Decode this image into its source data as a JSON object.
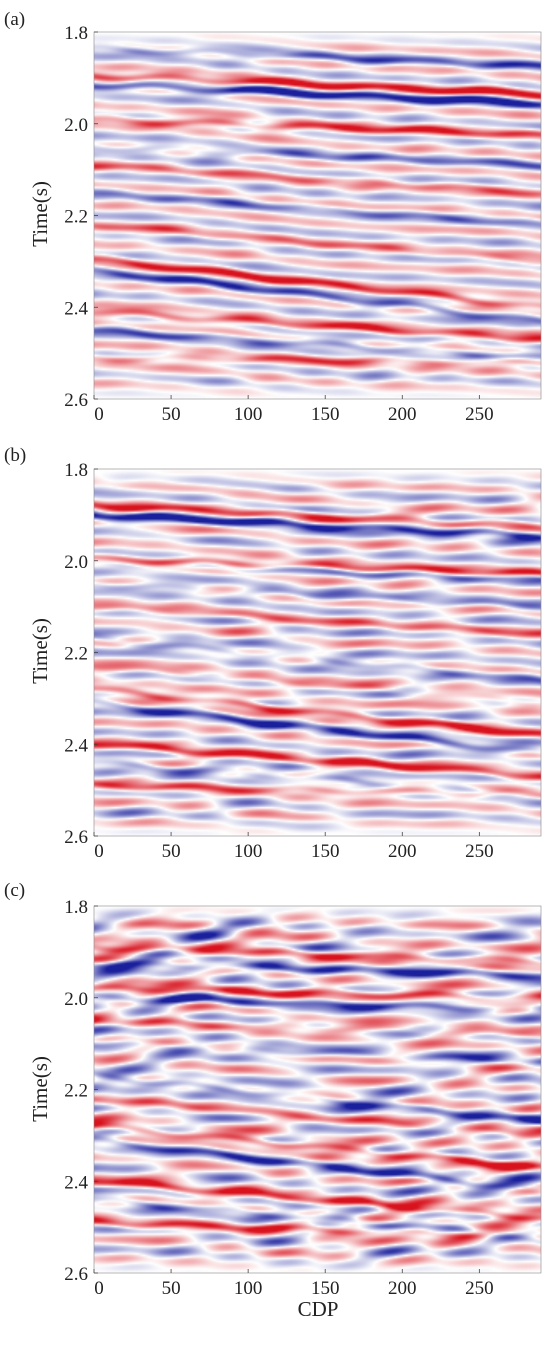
{
  "chart_data": [
    {
      "type": "heatmap",
      "panel_label": "(a)",
      "xlabel": "",
      "ylabel": "Time(s)",
      "xlim": [
        0,
        290
      ],
      "ylim": [
        2.6,
        1.8
      ],
      "xticks": [
        0,
        50,
        100,
        150,
        200,
        250
      ],
      "yticks": [
        1.8,
        2.0,
        2.2,
        2.4,
        2.6
      ],
      "xtick_labels": [
        "0",
        "50",
        "100",
        "150",
        "200",
        "250"
      ],
      "ytick_labels": [
        "1.8",
        "2.0",
        "2.2",
        "2.4",
        "2.6"
      ],
      "colormap": [
        "#1a1f9c",
        "#ffffff",
        "#d8131e"
      ],
      "noise": 0.12,
      "reflectors": [
        {
          "t0": 1.915,
          "t1": 1.955,
          "amp": -1.0
        },
        {
          "t0": 1.895,
          "t1": 1.935,
          "amp": 0.9
        },
        {
          "t0": 1.99,
          "t1": 2.025,
          "amp": 0.75
        },
        {
          "t0": 1.835,
          "t1": 1.875,
          "amp": -0.55
        },
        {
          "t0": 2.05,
          "t1": 2.09,
          "amp": -0.45
        },
        {
          "t0": 2.09,
          "t1": 2.15,
          "amp": 0.4
        },
        {
          "t0": 2.15,
          "t1": 2.22,
          "amp": -0.4
        },
        {
          "t0": 2.22,
          "t1": 2.3,
          "amp": 0.35
        },
        {
          "t0": 2.295,
          "t1": 2.4,
          "amp": 0.85
        },
        {
          "t0": 2.32,
          "t1": 2.43,
          "amp": -0.7
        },
        {
          "t0": 2.41,
          "t1": 2.47,
          "amp": 0.75
        },
        {
          "t0": 2.45,
          "t1": 2.51,
          "amp": -0.6
        },
        {
          "t0": 2.51,
          "t1": 2.52,
          "amp": 0.55
        }
      ]
    },
    {
      "type": "heatmap",
      "panel_label": "(b)",
      "xlabel": "",
      "ylabel": "Time(s)",
      "xlim": [
        0,
        290
      ],
      "ylim": [
        2.6,
        1.8
      ],
      "xticks": [
        0,
        50,
        100,
        150,
        200,
        250
      ],
      "yticks": [
        1.8,
        2.0,
        2.2,
        2.4,
        2.6
      ],
      "xtick_labels": [
        "0",
        "50",
        "100",
        "150",
        "200",
        "250"
      ],
      "ytick_labels": [
        "1.8",
        "2.0",
        "2.2",
        "2.4",
        "2.6"
      ],
      "colormap": [
        "#1a1f9c",
        "#ffffff",
        "#d8131e"
      ],
      "noise": 0.18,
      "reflectors": [
        {
          "t0": 1.9,
          "t1": 1.945,
          "amp": -1.0
        },
        {
          "t0": 1.88,
          "t1": 1.925,
          "amp": 0.7
        },
        {
          "t0": 1.995,
          "t1": 2.03,
          "amp": 0.8
        },
        {
          "t0": 2.005,
          "t1": 2.04,
          "amp": -0.45
        },
        {
          "t0": 2.05,
          "t1": 2.1,
          "amp": -0.4
        },
        {
          "t0": 2.1,
          "t1": 2.16,
          "amp": 0.4
        },
        {
          "t0": 2.17,
          "t1": 2.26,
          "amp": -0.5
        },
        {
          "t0": 2.23,
          "t1": 2.31,
          "amp": 0.35
        },
        {
          "t0": 2.28,
          "t1": 2.38,
          "amp": 0.85
        },
        {
          "t0": 2.31,
          "t1": 2.42,
          "amp": -0.75
        },
        {
          "t0": 2.4,
          "t1": 2.47,
          "amp": 0.8
        },
        {
          "t0": 2.44,
          "t1": 2.51,
          "amp": -0.55
        },
        {
          "t0": 2.49,
          "t1": 2.51,
          "amp": 0.6
        }
      ]
    },
    {
      "type": "heatmap",
      "panel_label": "(c)",
      "xlabel": "CDP",
      "ylabel": "Time(s)",
      "xlim": [
        0,
        290
      ],
      "ylim": [
        2.6,
        1.8
      ],
      "xticks": [
        0,
        50,
        100,
        150,
        200,
        250
      ],
      "yticks": [
        1.8,
        2.0,
        2.2,
        2.4,
        2.6
      ],
      "xtick_labels": [
        "0",
        "50",
        "100",
        "150",
        "200",
        "250"
      ],
      "ytick_labels": [
        "1.8",
        "2.0",
        "2.2",
        "2.4",
        "2.6"
      ],
      "colormap": [
        "#1a1f9c",
        "#ffffff",
        "#d8131e"
      ],
      "noise": 0.28,
      "reflectors": [
        {
          "t0": 1.89,
          "t1": 1.92,
          "amp": 0.6
        },
        {
          "t0": 1.925,
          "t1": 1.95,
          "amp": -0.65
        },
        {
          "t0": 1.98,
          "t1": 2.0,
          "amp": 0.8
        },
        {
          "t0": 2.0,
          "t1": 2.025,
          "amp": -0.75
        },
        {
          "t0": 2.05,
          "t1": 2.08,
          "amp": 0.4
        },
        {
          "t0": 2.1,
          "t1": 2.14,
          "amp": -0.4
        },
        {
          "t0": 2.17,
          "t1": 2.27,
          "amp": -0.6
        },
        {
          "t0": 2.22,
          "t1": 2.3,
          "amp": 0.35
        },
        {
          "t0": 2.28,
          "t1": 2.37,
          "amp": 0.8
        },
        {
          "t0": 2.31,
          "t1": 2.42,
          "amp": -0.7
        },
        {
          "t0": 2.4,
          "t1": 2.48,
          "amp": 0.85
        },
        {
          "t0": 2.44,
          "t1": 2.52,
          "amp": -0.55
        },
        {
          "t0": 2.49,
          "t1": 2.52,
          "amp": 0.7
        }
      ]
    }
  ]
}
